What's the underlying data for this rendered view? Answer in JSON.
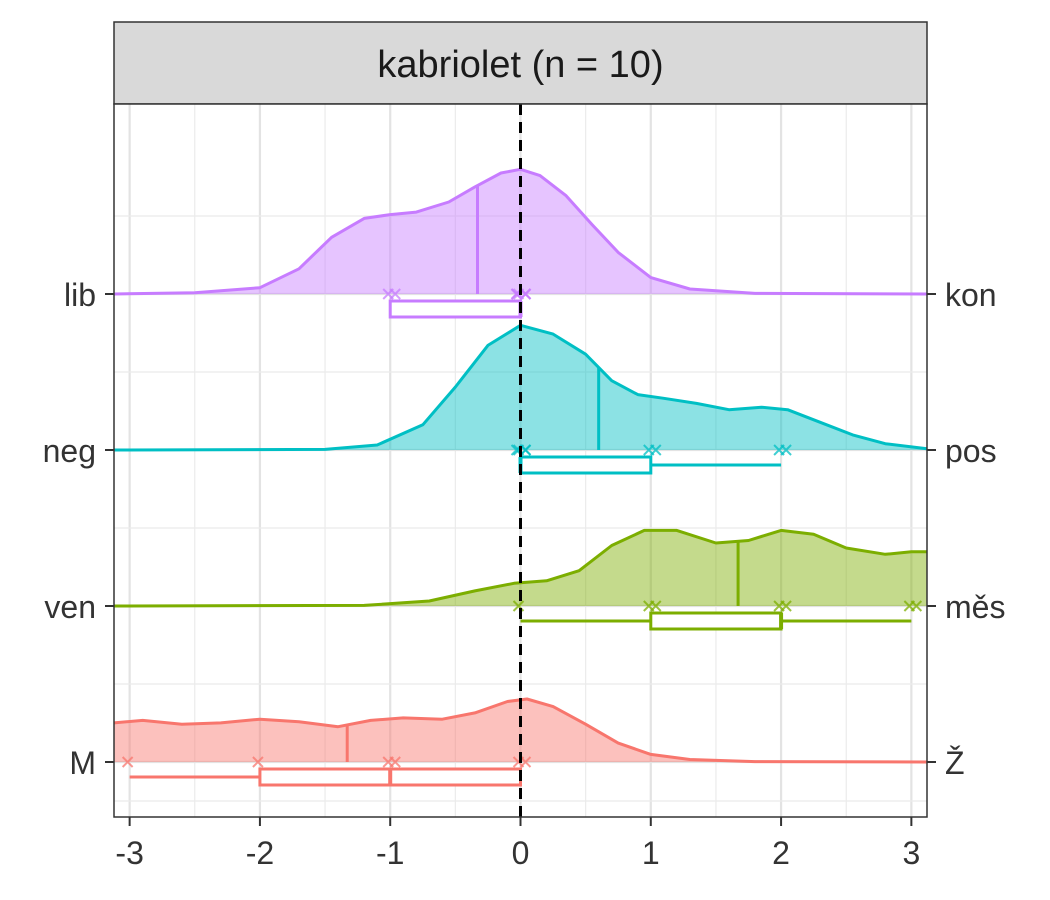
{
  "chart_data": {
    "type": "ridgeline",
    "title": "kabriolet (n = 10)",
    "xlabel": "",
    "ylabel": "",
    "xlim": [
      -3.12,
      3.12
    ],
    "x_ticks": [
      "-3",
      "-2",
      "-1",
      "0",
      "1",
      "2",
      "3"
    ],
    "x_tick_values": [
      -3,
      -2,
      -1,
      0,
      1,
      2,
      3
    ],
    "reference_line_x": 0,
    "grid": true,
    "rows": [
      {
        "left_label": "lib",
        "right_label": "kon",
        "color": "#C77CFF",
        "mean": -0.33,
        "points": [
          -1,
          -1,
          0,
          0,
          0,
          0,
          0,
          0
        ],
        "box": {
          "min": -1,
          "q1": -1,
          "median": 0,
          "q3": 0,
          "max": 0
        },
        "density": [
          [
            -3.12,
            0
          ],
          [
            -2.5,
            0.01
          ],
          [
            -2.0,
            0.05
          ],
          [
            -1.7,
            0.2
          ],
          [
            -1.45,
            0.45
          ],
          [
            -1.2,
            0.6
          ],
          [
            -1.0,
            0.63
          ],
          [
            -0.8,
            0.65
          ],
          [
            -0.55,
            0.73
          ],
          [
            -0.35,
            0.85
          ],
          [
            -0.15,
            0.96
          ],
          [
            0,
            0.99
          ],
          [
            0.15,
            0.94
          ],
          [
            0.35,
            0.78
          ],
          [
            0.55,
            0.55
          ],
          [
            0.75,
            0.33
          ],
          [
            1.0,
            0.13
          ],
          [
            1.3,
            0.04
          ],
          [
            1.8,
            0.005
          ],
          [
            3.12,
            0
          ]
        ]
      },
      {
        "left_label": "neg",
        "right_label": "pos",
        "color": "#00BFC4",
        "mean": 0.6,
        "points": [
          0,
          0,
          0,
          0,
          1,
          1,
          2,
          2
        ],
        "box": {
          "min": 0,
          "q1": 0,
          "median": 0,
          "q3": 1,
          "max": 2
        },
        "density": [
          [
            -3.12,
            0
          ],
          [
            -1.5,
            0.005
          ],
          [
            -1.1,
            0.04
          ],
          [
            -0.75,
            0.2
          ],
          [
            -0.5,
            0.5
          ],
          [
            -0.25,
            0.83
          ],
          [
            0,
            0.99
          ],
          [
            0.25,
            0.92
          ],
          [
            0.5,
            0.76
          ],
          [
            0.7,
            0.55
          ],
          [
            0.9,
            0.44
          ],
          [
            1.1,
            0.41
          ],
          [
            1.35,
            0.37
          ],
          [
            1.6,
            0.32
          ],
          [
            1.85,
            0.34
          ],
          [
            2.05,
            0.32
          ],
          [
            2.3,
            0.22
          ],
          [
            2.55,
            0.12
          ],
          [
            2.8,
            0.05
          ],
          [
            3.12,
            0.01
          ]
        ]
      },
      {
        "left_label": "ven",
        "right_label": "měs",
        "color": "#7CAE00",
        "mean": 1.67,
        "points": [
          0,
          1,
          1,
          2,
          2,
          3,
          3
        ],
        "box": {
          "min": 0,
          "q1": 1,
          "median": 2,
          "q3": 2,
          "max": 3
        },
        "density": [
          [
            -3.12,
            0
          ],
          [
            -1.2,
            0.005
          ],
          [
            -0.7,
            0.04
          ],
          [
            -0.35,
            0.12
          ],
          [
            -0.05,
            0.18
          ],
          [
            0.2,
            0.2
          ],
          [
            0.45,
            0.28
          ],
          [
            0.7,
            0.48
          ],
          [
            0.95,
            0.6
          ],
          [
            1.2,
            0.6
          ],
          [
            1.5,
            0.5
          ],
          [
            1.75,
            0.52
          ],
          [
            2.0,
            0.6
          ],
          [
            2.25,
            0.57
          ],
          [
            2.5,
            0.46
          ],
          [
            2.8,
            0.41
          ],
          [
            3.0,
            0.43
          ],
          [
            3.12,
            0.43
          ]
        ]
      },
      {
        "left_label": "M",
        "right_label": "Ž",
        "color": "#F8766D",
        "mean": -1.33,
        "points": [
          -3,
          -2,
          -1,
          -1,
          0,
          0
        ],
        "box": {
          "min": -3,
          "q1": -2,
          "median": -1,
          "q3": 0,
          "max": 0
        },
        "density": [
          [
            -3.12,
            0.31
          ],
          [
            -2.9,
            0.33
          ],
          [
            -2.6,
            0.3
          ],
          [
            -2.3,
            0.31
          ],
          [
            -2.0,
            0.34
          ],
          [
            -1.7,
            0.32
          ],
          [
            -1.4,
            0.28
          ],
          [
            -1.15,
            0.33
          ],
          [
            -0.9,
            0.35
          ],
          [
            -0.6,
            0.34
          ],
          [
            -0.35,
            0.39
          ],
          [
            -0.1,
            0.48
          ],
          [
            0.05,
            0.5
          ],
          [
            0.25,
            0.44
          ],
          [
            0.5,
            0.3
          ],
          [
            0.75,
            0.15
          ],
          [
            1.0,
            0.06
          ],
          [
            1.3,
            0.02
          ],
          [
            1.8,
            0.003
          ],
          [
            3.12,
            0
          ]
        ]
      }
    ]
  }
}
